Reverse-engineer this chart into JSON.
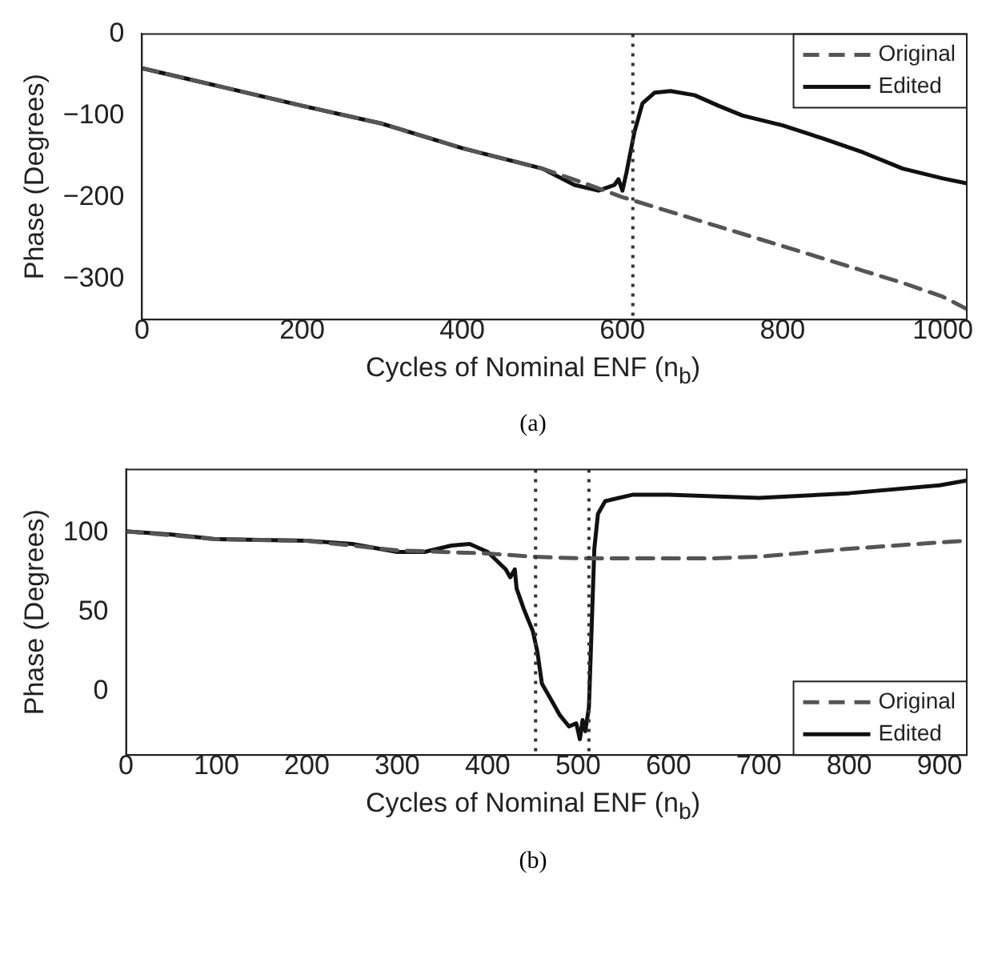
{
  "chart_data": [
    {
      "type": "line",
      "xlabel": "Cycles of Nominal ENF (n$_{b}$)",
      "ylabel": "Phase (Degrees)",
      "xlim": [
        0,
        1030
      ],
      "ylim": [
        -350,
        0
      ],
      "xticks": [
        0,
        200,
        400,
        600,
        800,
        1000
      ],
      "yticks": [
        -300,
        -200,
        -100,
        0
      ],
      "legend": "top right",
      "ref_lines": [
        {
          "axis": "x",
          "value": 613,
          "label": null,
          "color": "#333333",
          "line_style": "dotted"
        }
      ],
      "annotations": [
        "(a)"
      ],
      "series": [
        {
          "name": "Original",
          "color": "#555555",
          "line_style": "dashed",
          "x": [
            0,
            100,
            200,
            300,
            400,
            500,
            550,
            600,
            700,
            800,
            900,
            950,
            1000,
            1030
          ],
          "values": [
            -42,
            -65,
            -88,
            -110,
            -140,
            -165,
            -182,
            -200,
            -230,
            -260,
            -290,
            -305,
            -322,
            -337
          ]
        },
        {
          "name": "Edited",
          "color": "#111111",
          "line_style": "solid",
          "x": [
            0,
            100,
            200,
            300,
            400,
            500,
            540,
            570,
            590,
            595,
            600,
            605,
            615,
            625,
            640,
            660,
            690,
            720,
            750,
            800,
            850,
            900,
            950,
            1000,
            1030
          ],
          "values": [
            -42,
            -65,
            -88,
            -110,
            -140,
            -165,
            -185,
            -192,
            -185,
            -178,
            -192,
            -170,
            -120,
            -85,
            -72,
            -70,
            -75,
            -88,
            -100,
            -112,
            -128,
            -145,
            -165,
            -177,
            -183
          ]
        }
      ]
    },
    {
      "type": "line",
      "xlabel": "Cycles of Nominal ENF (n$_{b}$)",
      "ylabel": "Phase (Degrees)",
      "xlim": [
        0,
        930
      ],
      "ylim": [
        -40,
        140
      ],
      "xticks": [
        0,
        100,
        200,
        300,
        400,
        500,
        600,
        700,
        800,
        900
      ],
      "yticks": [
        0,
        50,
        100
      ],
      "legend": "bottom right",
      "ref_lines": [
        {
          "axis": "x",
          "value": 453,
          "label": null,
          "color": "#333333",
          "line_style": "dotted"
        },
        {
          "axis": "x",
          "value": 512,
          "label": null,
          "color": "#333333",
          "line_style": "dotted"
        }
      ],
      "annotations": [
        "(b)"
      ],
      "series": [
        {
          "name": "Original",
          "color": "#555555",
          "line_style": "dashed",
          "x": [
            0,
            100,
            200,
            300,
            350,
            400,
            450,
            500,
            600,
            650,
            700,
            800,
            900,
            930
          ],
          "values": [
            101,
            96,
            95,
            89,
            88,
            87,
            85,
            84,
            84,
            84,
            85,
            90,
            94,
            95
          ]
        },
        {
          "name": "Edited",
          "color": "#111111",
          "line_style": "solid",
          "x": [
            0,
            50,
            100,
            200,
            250,
            300,
            330,
            360,
            380,
            400,
            420,
            425,
            430,
            432,
            440,
            450,
            455,
            460,
            470,
            480,
            490,
            498,
            502,
            505,
            508,
            512,
            515,
            518,
            522,
            530,
            560,
            600,
            700,
            800,
            900,
            930
          ],
          "values": [
            101,
            99,
            96,
            95,
            93,
            88,
            88,
            92,
            93,
            88,
            77,
            72,
            77,
            65,
            52,
            38,
            25,
            5,
            -5,
            -15,
            -22,
            -20,
            -30,
            -18,
            -25,
            -10,
            40,
            90,
            112,
            120,
            124,
            124,
            122,
            125,
            130,
            133
          ]
        }
      ]
    }
  ]
}
